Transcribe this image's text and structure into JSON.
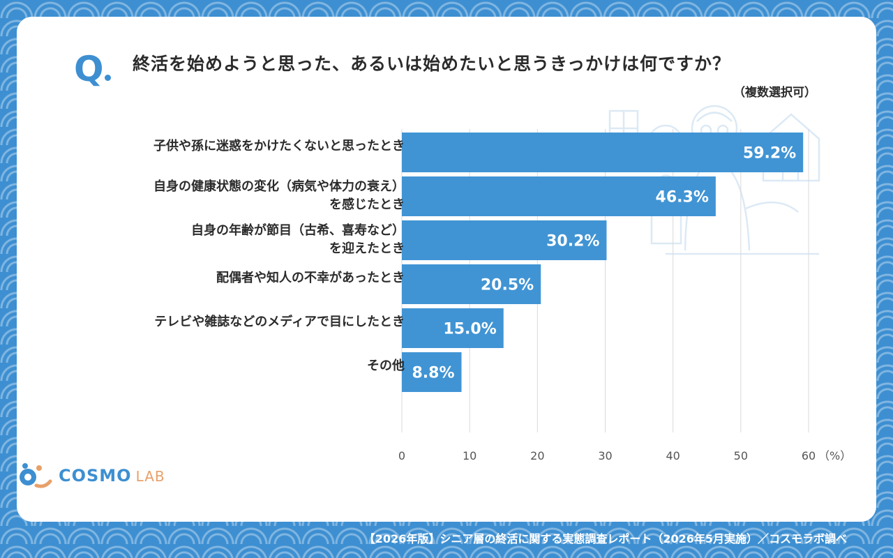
{
  "question": {
    "mark": "Q",
    "text": "終活を始めようと思った、あるいは始めたいと思うきっかけは何ですか？",
    "note": "（複数選択可）"
  },
  "chart_data": {
    "type": "bar",
    "orientation": "horizontal",
    "categories": [
      [
        "子供や孫に迷惑をかけたくないと思ったとき"
      ],
      [
        "自身の健康状態の変化（病気や体力の衰え）",
        "を感じたとき"
      ],
      [
        "自身の年齢が節目（古希、喜寿など）",
        "を迎えたとき"
      ],
      [
        "配偶者や知人の不幸があったとき"
      ],
      [
        "テレビや雑誌などのメディアで目にしたとき"
      ],
      [
        "その他"
      ]
    ],
    "values": [
      59.2,
      46.3,
      30.2,
      20.5,
      15.0,
      8.8
    ],
    "data_labels": [
      "59.2%",
      "46.3%",
      "30.2%",
      "20.5%",
      "15.0%",
      "8.8%"
    ],
    "xlim": [
      0,
      60
    ],
    "x_ticks": [
      "0",
      "10",
      "20",
      "30",
      "40",
      "50",
      "60"
    ],
    "x_unit": "（%）",
    "grid": true,
    "bar_color": "#4094d4"
  },
  "logo": {
    "name": "COSMO",
    "suffix": "LAB"
  },
  "footer": "【2026年版】シニア層の終活に関する実態調査レポート（2026年5月実施）／コスモラボ調べ",
  "colors": {
    "accent": "#3d8fd1",
    "logo_secondary": "#e8a06a"
  }
}
